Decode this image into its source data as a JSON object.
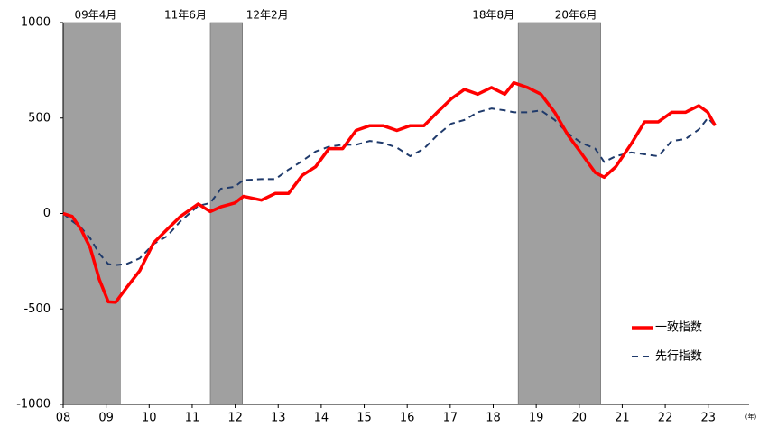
{
  "chart_data": {
    "type": "line",
    "x": [
      2008.0,
      2008.21,
      2008.42,
      2008.63,
      2008.84,
      2009.05,
      2009.22,
      2009.47,
      2009.78,
      2010.1,
      2010.41,
      2010.73,
      2011.14,
      2011.42,
      2011.67,
      2011.99,
      2012.19,
      2012.61,
      2012.93,
      2013.24,
      2013.56,
      2013.87,
      2014.18,
      2014.5,
      2014.81,
      2015.13,
      2015.44,
      2015.76,
      2016.07,
      2016.39,
      2016.7,
      2017.02,
      2017.33,
      2017.64,
      2017.96,
      2018.27,
      2018.48,
      2018.8,
      2019.11,
      2019.43,
      2019.74,
      2020.05,
      2020.37,
      2020.58,
      2020.85,
      2021.21,
      2021.52,
      2021.84,
      2022.15,
      2022.47,
      2022.78,
      2022.99,
      2023.16
    ],
    "series": [
      {
        "name": "一致指数",
        "color": "#ff0000",
        "values": [
          0,
          -15,
          -85,
          -180,
          -345,
          -463,
          -465,
          -390,
          -300,
          -155,
          -85,
          -15,
          50,
          10,
          35,
          55,
          90,
          70,
          105,
          105,
          200,
          245,
          340,
          340,
          435,
          460,
          460,
          435,
          460,
          460,
          530,
          600,
          650,
          625,
          660,
          625,
          685,
          660,
          625,
          530,
          410,
          315,
          215,
          190,
          245,
          365,
          480,
          480,
          530,
          530,
          565,
          530,
          460
        ]
      },
      {
        "name": "先行指数",
        "color": "#1f3a6b",
        "values": [
          0,
          -40,
          -75,
          -130,
          -210,
          -265,
          -270,
          -265,
          -235,
          -160,
          -120,
          -40,
          40,
          55,
          130,
          140,
          175,
          180,
          180,
          230,
          275,
          325,
          350,
          360,
          360,
          380,
          370,
          345,
          300,
          340,
          410,
          470,
          490,
          530,
          550,
          540,
          530,
          530,
          540,
          490,
          420,
          370,
          340,
          270,
          300,
          320,
          310,
          300,
          380,
          390,
          440,
          500,
          460
        ]
      }
    ],
    "xlim": [
      2008.0,
      2023.95
    ],
    "xticks": [
      {
        "value": 2008,
        "label": "08"
      },
      {
        "value": 2009,
        "label": "09"
      },
      {
        "value": 2010,
        "label": "10"
      },
      {
        "value": 2011,
        "label": "11"
      },
      {
        "value": 2012,
        "label": "12"
      },
      {
        "value": 2013,
        "label": "13"
      },
      {
        "value": 2014,
        "label": "14"
      },
      {
        "value": 2015,
        "label": "15"
      },
      {
        "value": 2016,
        "label": "16"
      },
      {
        "value": 2017,
        "label": "17"
      },
      {
        "value": 2018,
        "label": "18"
      },
      {
        "value": 2019,
        "label": "19"
      },
      {
        "value": 2020,
        "label": "20"
      },
      {
        "value": 2021,
        "label": "21"
      },
      {
        "value": 2022,
        "label": "22"
      },
      {
        "value": 2023,
        "label": "23"
      }
    ],
    "x_unit": "(年)",
    "ylim": [
      -1000,
      1000
    ],
    "yticks": [
      -1000,
      -500,
      0,
      500,
      1000
    ],
    "shaded_periods": [
      [
        2008.0,
        2009.33
      ],
      [
        2011.42,
        2012.17
      ],
      [
        2018.58,
        2020.5
      ]
    ],
    "shade_color": "#a0a0a0",
    "annotations": [
      {
        "text": "09年4月",
        "x": 2009.33
      },
      {
        "text": "11年6月",
        "x": 2011.42
      },
      {
        "text": "12年2月",
        "x": 2012.17
      },
      {
        "text": "18年8月",
        "x": 2018.58
      },
      {
        "text": "20年6月",
        "x": 2020.5
      }
    ],
    "legend": "lower right"
  }
}
